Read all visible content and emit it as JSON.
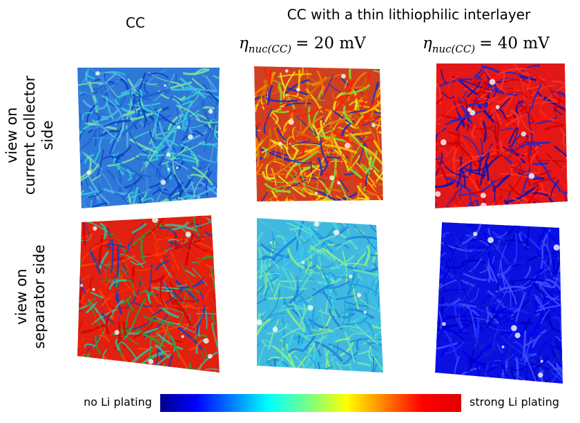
{
  "header": {
    "left": "CC",
    "right": "CC with a thin lithiophilic interlayer"
  },
  "conditions": [
    {
      "symbol": "η",
      "subscript": "nuc(CC)",
      "rest": "= 20 mV"
    },
    {
      "symbol": "η",
      "subscript": "nuc(CC)",
      "rest": "= 40 mV"
    }
  ],
  "row_labels": [
    [
      "view on",
      "current collector",
      "side"
    ],
    [
      "view on",
      "separator side"
    ]
  ],
  "colorbar": {
    "low": "no Li plating",
    "high": "strong Li plating"
  }
}
